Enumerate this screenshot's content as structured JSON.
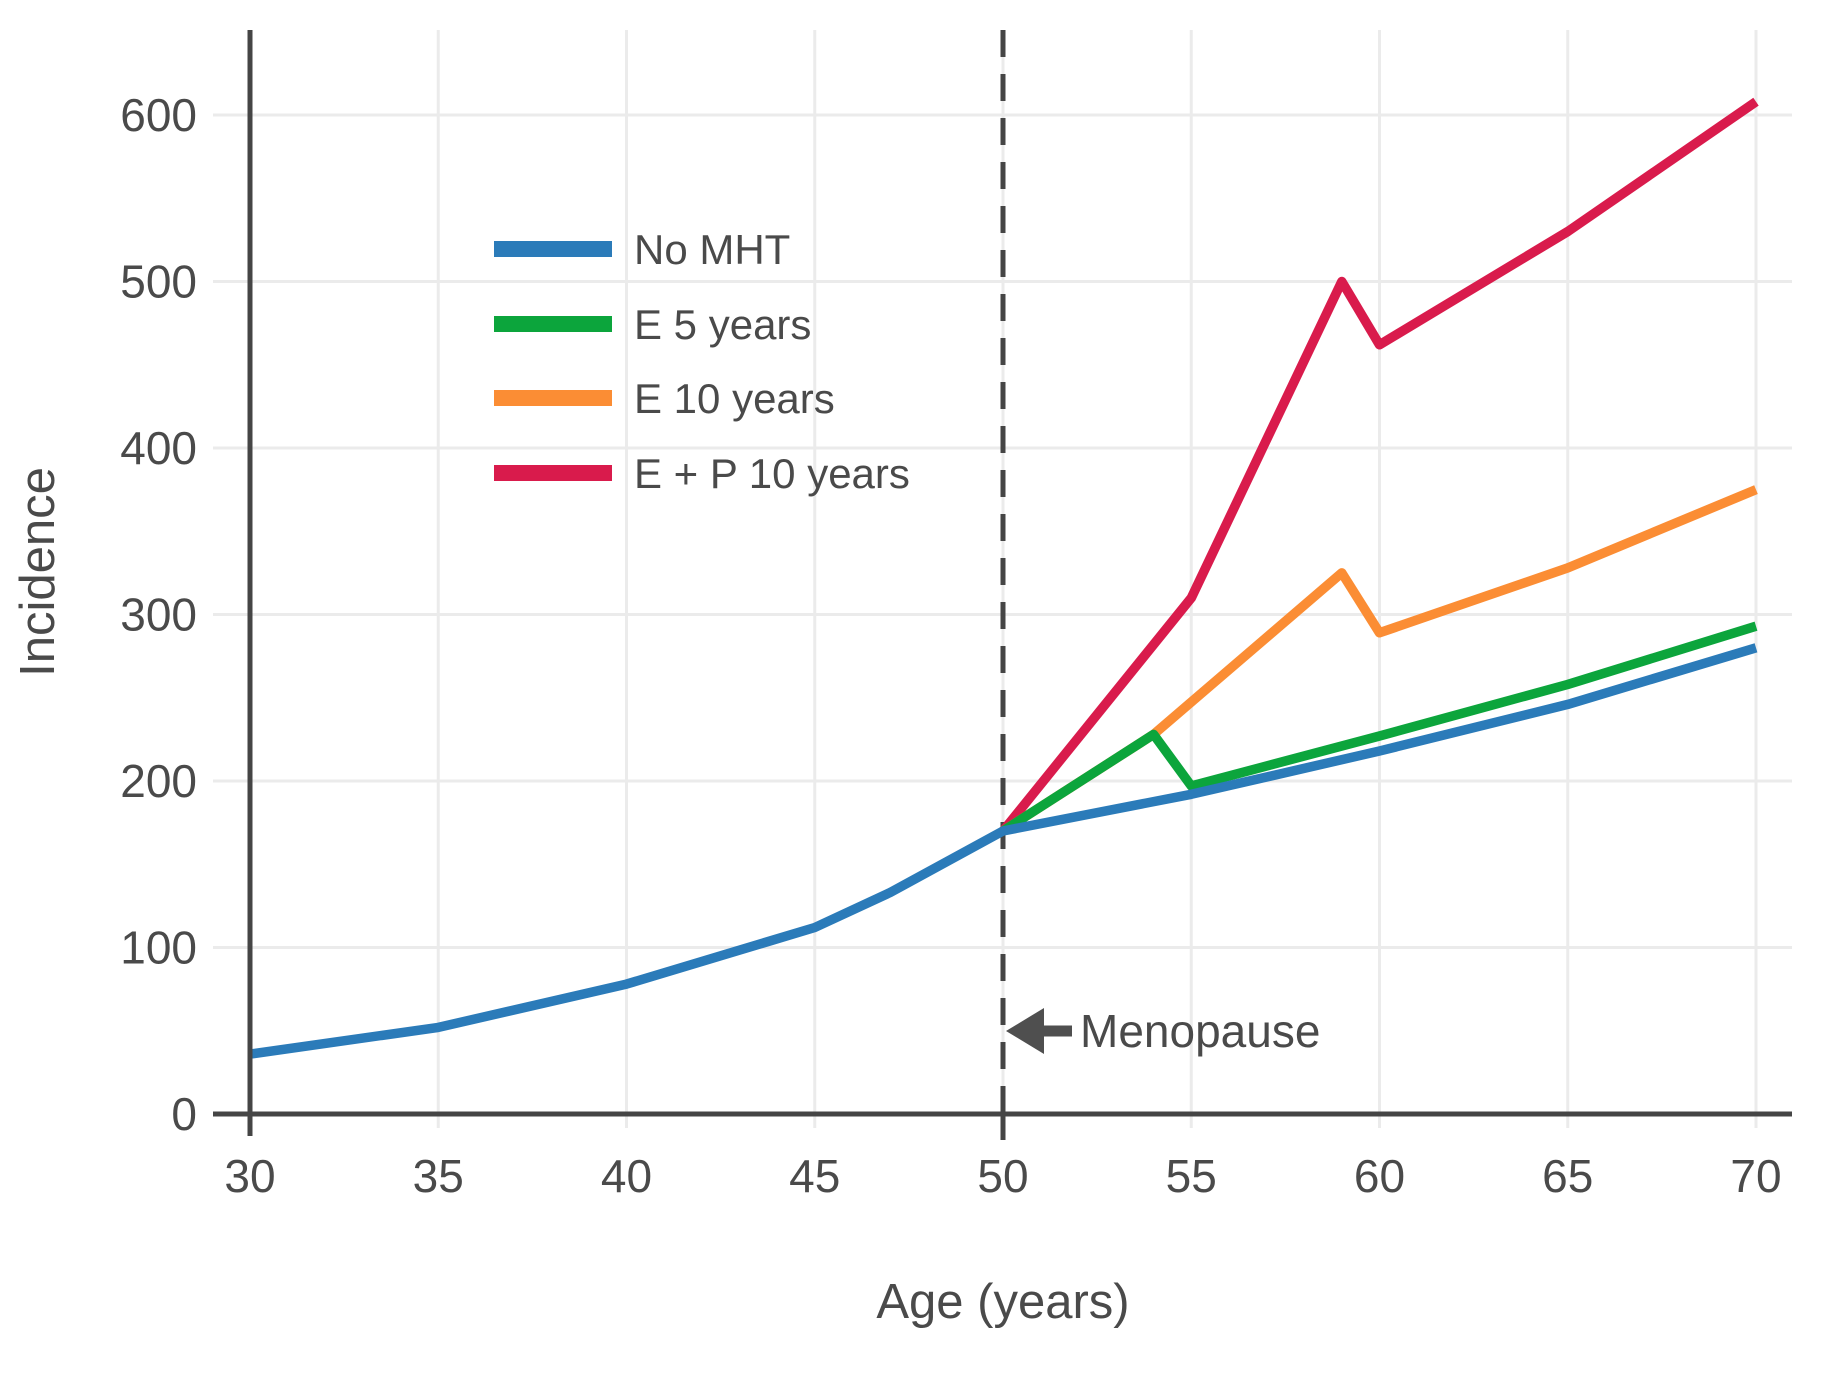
{
  "figure": {
    "background": "#ffffff",
    "text_color": "#4a4a4a",
    "axis_color": "#454545",
    "grid_color": "#ebebeb",
    "annotation_color": "#4f4f4f"
  },
  "chart_data": {
    "type": "line",
    "title": "",
    "xlabel": "Age (years)",
    "ylabel": "Incidence",
    "xlim": [
      30,
      71
    ],
    "ylim": [
      0,
      655
    ],
    "xticks": [
      30,
      35,
      40,
      45,
      50,
      55,
      60,
      65,
      70
    ],
    "yticks": [
      0,
      100,
      200,
      300,
      400,
      500,
      600
    ],
    "grid": true,
    "legend_position": "upper-left-inside",
    "menopause_line": {
      "x": 50,
      "style": "dashed",
      "color": "#454545"
    },
    "annotation": {
      "text": "Menopause",
      "x": 50,
      "y": 50,
      "arrow": "left"
    },
    "series": [
      {
        "name": "No MHT",
        "color": "#2b7bb9",
        "points": [
          [
            30,
            36
          ],
          [
            35,
            52
          ],
          [
            40,
            78
          ],
          [
            45,
            112
          ],
          [
            47,
            133
          ],
          [
            50,
            170
          ],
          [
            55,
            192
          ],
          [
            60,
            218
          ],
          [
            65,
            246
          ],
          [
            70,
            280
          ]
        ]
      },
      {
        "name": "E 5 years",
        "color": "#0ca53c",
        "points": [
          [
            50,
            170
          ],
          [
            54,
            228
          ],
          [
            55,
            197
          ],
          [
            60,
            227
          ],
          [
            65,
            258
          ],
          [
            70,
            293
          ]
        ]
      },
      {
        "name": "E 10 years",
        "color": "#fb8d34",
        "points": [
          [
            50,
            170
          ],
          [
            54,
            228
          ],
          [
            59,
            325
          ],
          [
            60,
            289
          ],
          [
            65,
            328
          ],
          [
            70,
            375
          ]
        ]
      },
      {
        "name": "E + P 10 years",
        "color": "#d91b4c",
        "points": [
          [
            50,
            170
          ],
          [
            55,
            310
          ],
          [
            59,
            500
          ],
          [
            60,
            462
          ],
          [
            65,
            530
          ],
          [
            70,
            608
          ]
        ]
      }
    ]
  }
}
